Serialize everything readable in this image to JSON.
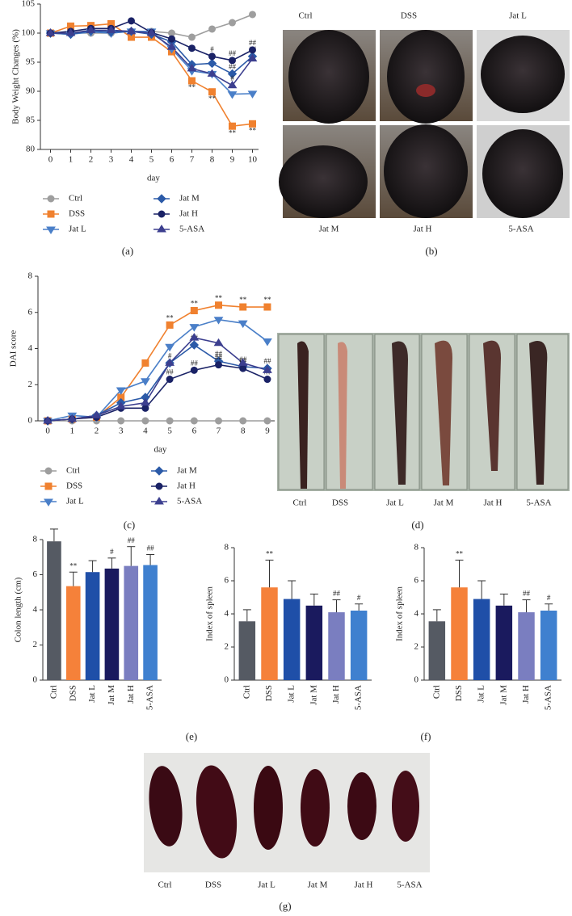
{
  "chart_data": [
    {
      "type": "line",
      "caption": "(a)",
      "xlabel": "day",
      "ylabel": "Body Weight Changes (%)",
      "x": [
        0,
        1,
        2,
        3,
        4,
        5,
        6,
        7,
        8,
        9,
        10
      ],
      "xlim": [
        -0.5,
        10.3
      ],
      "xticks": [
        0,
        1,
        2,
        3,
        4,
        5,
        6,
        7,
        8,
        9,
        10
      ],
      "ylim": [
        80,
        105
      ],
      "yticks": [
        80,
        85,
        90,
        95,
        100,
        105
      ],
      "series": [
        {
          "name": "Ctrl",
          "color": "#9e9e9e",
          "marker": "circle",
          "values": [
            100,
            100,
            100,
            100,
            100.3,
            100.3,
            100,
            99.3,
            100.7,
            101.8,
            103.2
          ],
          "annotations": [
            null,
            null,
            null,
            null,
            null,
            null,
            null,
            null,
            null,
            null,
            null
          ]
        },
        {
          "name": "DSS",
          "color": "#f0812f",
          "marker": "square",
          "values": [
            100,
            101.2,
            101.3,
            101.6,
            99.3,
            99.3,
            96.8,
            91.8,
            89.9,
            84,
            84.4
          ],
          "annotations": [
            null,
            null,
            null,
            null,
            null,
            null,
            null,
            "**",
            "**",
            "**",
            "**"
          ]
        },
        {
          "name": "Jat L",
          "color": "#4a7fc8",
          "marker": "triangle-down",
          "values": [
            100,
            99.8,
            100.2,
            100,
            100.3,
            100.3,
            97.3,
            93.5,
            93,
            89.5,
            89.6
          ],
          "annotations": [
            null,
            null,
            null,
            null,
            null,
            null,
            null,
            null,
            null,
            null,
            null
          ]
        },
        {
          "name": "Jat M",
          "color": "#2b5aa8",
          "marker": "diamond",
          "values": [
            100,
            99.8,
            100.4,
            100.2,
            100.3,
            99.8,
            98.5,
            94.6,
            94.8,
            93,
            96
          ],
          "annotations": [
            null,
            null,
            null,
            null,
            null,
            null,
            null,
            null,
            null,
            "##",
            "##"
          ]
        },
        {
          "name": "Jat H",
          "color": "#1a2266",
          "marker": "circle",
          "values": [
            100,
            100.3,
            100.8,
            100.8,
            102.1,
            100.1,
            99,
            97.4,
            96,
            95.3,
            97.1
          ],
          "annotations": [
            null,
            null,
            null,
            null,
            null,
            null,
            null,
            null,
            "#",
            "##",
            "##"
          ]
        },
        {
          "name": "5-ASA",
          "color": "#3c3f8f",
          "marker": "triangle-up",
          "values": [
            100,
            100,
            100.5,
            100.5,
            100.3,
            100,
            97.6,
            93.9,
            93,
            91,
            95.6
          ],
          "annotations": [
            null,
            null,
            null,
            null,
            null,
            null,
            null,
            null,
            null,
            "#",
            null
          ]
        }
      ]
    },
    {
      "type": "line",
      "caption": "(c)",
      "xlabel": "day",
      "ylabel": "DAI score",
      "x": [
        0,
        1,
        2,
        3,
        4,
        5,
        6,
        7,
        8,
        9
      ],
      "xlim": [
        -0.4,
        9.3
      ],
      "xticks": [
        0,
        1,
        2,
        3,
        4,
        5,
        6,
        7,
        8,
        9
      ],
      "ylim": [
        0,
        8
      ],
      "yticks": [
        0,
        2,
        4,
        6,
        8
      ],
      "series": [
        {
          "name": "Ctrl",
          "color": "#9e9e9e",
          "marker": "circle",
          "values": [
            0,
            0,
            0,
            0,
            0,
            0,
            0,
            0,
            0,
            0
          ],
          "annotations": [
            null,
            null,
            null,
            null,
            null,
            null,
            null,
            null,
            null,
            null
          ]
        },
        {
          "name": "DSS",
          "color": "#f0812f",
          "marker": "square",
          "values": [
            0,
            0.1,
            0.2,
            1.3,
            3.2,
            5.3,
            6.1,
            6.4,
            6.3,
            6.3
          ],
          "annotations": [
            null,
            null,
            null,
            null,
            null,
            "**",
            "**",
            "**",
            "**",
            "**"
          ]
        },
        {
          "name": "Jat L",
          "color": "#4a7fc8",
          "marker": "triangle-down",
          "values": [
            0,
            0.3,
            0.2,
            1.7,
            2.2,
            4.1,
            5.2,
            5.6,
            5.4,
            4.4
          ],
          "annotations": [
            null,
            null,
            null,
            null,
            null,
            null,
            null,
            null,
            null,
            null
          ]
        },
        {
          "name": "Jat M",
          "color": "#2b5aa8",
          "marker": "diamond",
          "values": [
            0,
            0.1,
            0.3,
            1,
            1.3,
            3.2,
            4.2,
            3.3,
            3,
            2.9
          ],
          "annotations": [
            null,
            null,
            null,
            null,
            null,
            "#",
            "##",
            "##",
            "##",
            "##"
          ]
        },
        {
          "name": "Jat H",
          "color": "#1a2266",
          "marker": "circle",
          "values": [
            0,
            0.1,
            0.2,
            0.7,
            0.7,
            2.3,
            2.8,
            3.1,
            2.9,
            2.3
          ],
          "annotations": [
            null,
            null,
            null,
            null,
            null,
            "##",
            "##",
            "##",
            "##",
            "##"
          ]
        },
        {
          "name": "5-ASA",
          "color": "#3c3f8f",
          "marker": "triangle-up",
          "values": [
            0,
            0.1,
            0.3,
            0.8,
            1,
            3.2,
            4.6,
            4.3,
            3.2,
            2.8
          ],
          "annotations": [
            null,
            null,
            null,
            null,
            null,
            null,
            null,
            null,
            null,
            null
          ]
        }
      ]
    },
    {
      "type": "bar",
      "caption": "(e)",
      "ylabel": "Colon length (cm)",
      "ylim": [
        0,
        8
      ],
      "yticks": [
        0,
        2,
        4,
        6,
        8
      ],
      "categories": [
        "Ctrl",
        "DSS",
        "Jat L",
        "Jat M",
        "Jat H",
        "5-ASA"
      ],
      "colors": [
        "#555a63",
        "#f5813a",
        "#1f4fa8",
        "#1a1a5e",
        "#7a7ec0",
        "#3f80cf"
      ],
      "values": [
        7.9,
        5.35,
        6.15,
        6.35,
        6.5,
        6.55
      ],
      "errors": [
        0.7,
        0.8,
        0.65,
        0.6,
        1.1,
        0.6
      ],
      "annotations": [
        null,
        "**",
        null,
        "#",
        "##",
        "##"
      ]
    },
    {
      "type": "bar",
      "ylabel": "Index of spleen",
      "ylim": [
        0,
        8
      ],
      "yticks": [
        0,
        2,
        4,
        6,
        8
      ],
      "categories": [
        "Ctrl",
        "DSS",
        "Jat L",
        "Jat M",
        "Jat H",
        "5-ASA"
      ],
      "colors": [
        "#555a63",
        "#f5813a",
        "#1f4fa8",
        "#1a1a5e",
        "#7a7ec0",
        "#3f80cf"
      ],
      "values": [
        3.55,
        5.6,
        4.9,
        4.5,
        4.1,
        4.2
      ],
      "errors": [
        0.7,
        1.65,
        1.1,
        0.7,
        0.75,
        0.4
      ],
      "annotations": [
        null,
        "**",
        null,
        null,
        "##",
        "#"
      ]
    },
    {
      "type": "bar",
      "caption": "(f)",
      "ylabel": "Index of spleen",
      "ylim": [
        0,
        8
      ],
      "yticks": [
        0,
        2,
        4,
        6,
        8
      ],
      "categories": [
        "Ctrl",
        "DSS",
        "Jat L",
        "Jat M",
        "Jat H",
        "5-ASA"
      ],
      "colors": [
        "#555a63",
        "#f5813a",
        "#1f4fa8",
        "#1a1a5e",
        "#7a7ec0",
        "#3f80cf"
      ],
      "values": [
        3.55,
        5.6,
        4.9,
        4.5,
        4.1,
        4.2
      ],
      "errors": [
        0.7,
        1.65,
        1.1,
        0.7,
        0.75,
        0.4
      ],
      "annotations": [
        null,
        "**",
        null,
        null,
        "##",
        "#"
      ]
    }
  ],
  "photos": [
    {
      "caption": "(b)",
      "labels": [
        "Ctrl",
        "DSS",
        "Jat L",
        "Jat M",
        "Jat H",
        "5-ASA"
      ]
    },
    {
      "caption": "(d)",
      "labels": [
        "Ctrl",
        "DSS",
        "Jat L",
        "Jat M",
        "Jat H",
        "5-ASA"
      ]
    },
    {
      "caption": "(g)",
      "labels": [
        "Ctrl",
        "DSS",
        "Jat L",
        "Jat M",
        "Jat H",
        "5-ASA"
      ]
    }
  ]
}
